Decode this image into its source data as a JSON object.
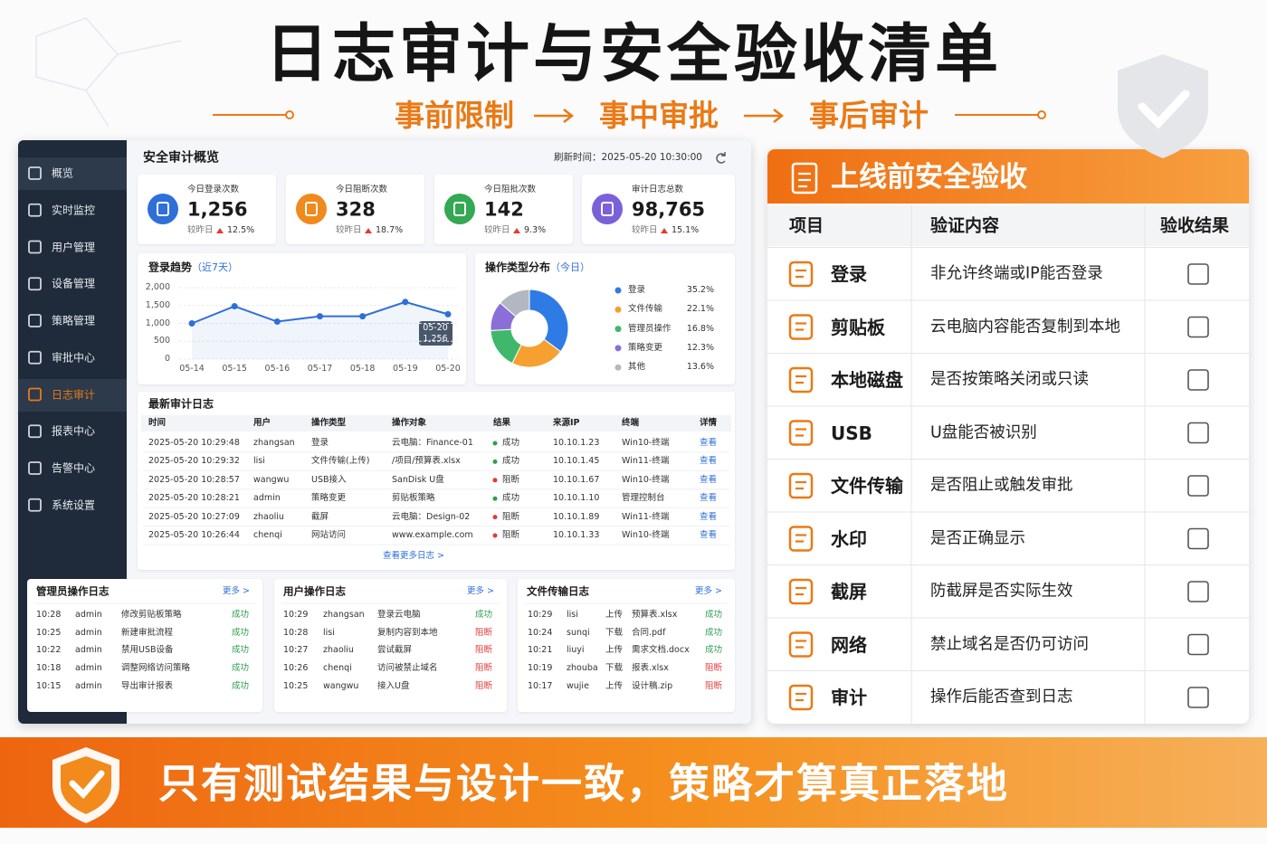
{
  "header": {
    "title": "日志审计与安全验收清单",
    "flow": [
      "事前限制",
      "事中审批",
      "事后审计"
    ]
  },
  "sidebar": {
    "items": [
      "概览",
      "实时监控",
      "用户管理",
      "设备管理",
      "策略管理",
      "审批中心",
      "日志审计",
      "报表中心",
      "告警中心",
      "系统设置"
    ],
    "active": 6
  },
  "dashboard": {
    "title": "安全审计概览",
    "refresh": "刷新时间：2025-05-20 10:30:00",
    "kpis": [
      {
        "label": "今日登录次数",
        "value": "1,256",
        "compare": "较昨日",
        "change": "12.5%",
        "color": "#2f6fd8"
      },
      {
        "label": "今日阻断次数",
        "value": "328",
        "compare": "较昨日",
        "change": "18.7%",
        "color": "#f08a1c"
      },
      {
        "label": "今日阻批次数",
        "value": "142",
        "compare": "较昨日",
        "change": "9.3%",
        "color": "#34a853"
      },
      {
        "label": "审计日志总数",
        "value": "98,765",
        "compare": "较昨日",
        "change": "15.1%",
        "color": "#7b61d9"
      }
    ],
    "logs": {
      "title": "最新审计日志",
      "headers": [
        "时间",
        "用户",
        "操作类型",
        "操作对象",
        "结果",
        "来源IP",
        "终端",
        "详情"
      ],
      "rows": [
        [
          "2025-05-20 10:29:48",
          "zhangsan",
          "登录",
          "云电脑：Finance-01",
          {
            "text": "成功",
            "color": "#2e9e4f"
          },
          "10.10.1.23",
          "Win10-终端",
          "查看"
        ],
        [
          "2025-05-20 10:29:32",
          "lisi",
          "文件传输(上传)",
          "/项目/预算表.xlsx",
          {
            "text": "成功",
            "color": "#2e9e4f"
          },
          "10.10.1.45",
          "Win11-终端",
          "查看"
        ],
        [
          "2025-05-20 10:28:57",
          "wangwu",
          "USB接入",
          "SanDisk U盘",
          {
            "text": "阻断",
            "color": "#e53935"
          },
          "10.10.1.67",
          "Win10-终端",
          "查看"
        ],
        [
          "2025-05-20 10:28:21",
          "admin",
          "策略变更",
          "剪贴板策略",
          {
            "text": "成功",
            "color": "#2e9e4f"
          },
          "10.10.1.10",
          "管理控制台",
          "查看"
        ],
        [
          "2025-05-20 10:27:09",
          "zhaoliu",
          "截屏",
          "云电脑：Design-02",
          {
            "text": "阻断",
            "color": "#e53935"
          },
          "10.10.1.89",
          "Win11-终端",
          "查看"
        ],
        [
          "2025-05-20 10:26:44",
          "chenqi",
          "网站访问",
          "www.example.com",
          {
            "text": "阻断",
            "color": "#e53935"
          },
          "10.10.1.33",
          "Win10-终端",
          "查看"
        ]
      ],
      "more": "查看更多日志 >"
    },
    "panels": [
      {
        "title": "管理员操作日志",
        "more": "更多 >",
        "rows": [
          [
            "10:28",
            "admin",
            "修改剪贴板策略",
            {
              "text": "成功",
              "color": "#2e9e4f"
            }
          ],
          [
            "10:25",
            "admin",
            "新建审批流程",
            {
              "text": "成功",
              "color": "#2e9e4f"
            }
          ],
          [
            "10:22",
            "admin",
            "禁用USB设备",
            {
              "text": "成功",
              "color": "#2e9e4f"
            }
          ],
          [
            "10:18",
            "admin",
            "调整网络访问策略",
            {
              "text": "成功",
              "color": "#2e9e4f"
            }
          ],
          [
            "10:15",
            "admin",
            "导出审计报表",
            {
              "text": "成功",
              "color": "#2e9e4f"
            }
          ]
        ]
      },
      {
        "title": "用户操作日志",
        "more": "更多 >",
        "rows": [
          [
            "10:29",
            "zhangsan",
            "登录云电脑",
            {
              "text": "成功",
              "color": "#2e9e4f"
            }
          ],
          [
            "10:28",
            "lisi",
            "复制内容到本地",
            {
              "text": "阻断",
              "color": "#e53935"
            }
          ],
          [
            "10:27",
            "zhaoliu",
            "尝试截屏",
            {
              "text": "阻断",
              "color": "#e53935"
            }
          ],
          [
            "10:26",
            "chenqi",
            "访问被禁止域名",
            {
              "text": "阻断",
              "color": "#e53935"
            }
          ],
          [
            "10:25",
            "wangwu",
            "接入U盘",
            {
              "text": "阻断",
              "color": "#e53935"
            }
          ]
        ]
      },
      {
        "title": "文件传输日志",
        "more": "更多 >",
        "rows": [
          [
            "10:29",
            "lisi",
            "上传",
            "预算表.xlsx",
            {
              "text": "成功",
              "color": "#2e9e4f"
            }
          ],
          [
            "10:24",
            "sunqi",
            "下载",
            "合同.pdf",
            {
              "text": "成功",
              "color": "#2e9e4f"
            }
          ],
          [
            "10:21",
            "liuyi",
            "上传",
            "需求文档.docx",
            {
              "text": "成功",
              "color": "#2e9e4f"
            }
          ],
          [
            "10:19",
            "zhouba",
            "下载",
            "报表.xlsx",
            {
              "text": "阻断",
              "color": "#e53935"
            }
          ],
          [
            "10:17",
            "wujie",
            "上传",
            "设计稿.zip",
            {
              "text": "阻断",
              "color": "#e53935"
            }
          ]
        ]
      }
    ]
  },
  "chart_data": [
    {
      "type": "line",
      "title": "登录趋势",
      "subtitle": "（近7天）",
      "categories": [
        "05-14",
        "05-15",
        "05-16",
        "05-17",
        "05-18",
        "05-19",
        "05-20"
      ],
      "values": [
        1000,
        1480,
        1050,
        1200,
        1200,
        1600,
        1256
      ],
      "color": "#2f6fd8",
      "ylim": [
        0,
        2000
      ],
      "yticks": [
        0,
        500,
        {
          "value": 1000,
          "label": "1,000"
        },
        {
          "value": 1500,
          "label": "1,500"
        },
        {
          "value": 2000,
          "label": "2,000"
        }
      ],
      "grid": true,
      "annotations": [
        {
          "title": "05-20",
          "label": "1,256"
        }
      ]
    },
    {
      "type": "pie",
      "title": "操作类型分布",
      "subtitle": "（今日）",
      "categories": [
        "登录",
        "文件传输",
        "管理员操作",
        "策略变更",
        "其他"
      ],
      "values": [
        35.2,
        22.1,
        16.8,
        12.3,
        13.6
      ],
      "value_labels": [
        "35.2%",
        "22.1%",
        "16.8%",
        "12.3%",
        "13.6%"
      ],
      "colors": [
        "#2f7be5",
        "#f5a030",
        "#3fb86b",
        "#8a6fd8",
        "#b3b8c0"
      ]
    }
  ],
  "checklist": {
    "title": "上线前安全验收",
    "headers": [
      "项目",
      "验证内容",
      "验收结果"
    ],
    "rows": [
      {
        "item": "登录",
        "content": "非允许终端或IP能否登录"
      },
      {
        "item": "剪贴板",
        "content": "云电脑内容能否复制到本地"
      },
      {
        "item": "本地磁盘",
        "content": "是否按策略关闭或只读"
      },
      {
        "item": "USB",
        "content": "U盘能否被识别"
      },
      {
        "item": "文件传输",
        "content": "是否阻止或触发审批"
      },
      {
        "item": "水印",
        "content": "是否正确显示"
      },
      {
        "item": "截屏",
        "content": "防截屏是否实际生效"
      },
      {
        "item": "网络",
        "content": "禁止域名是否仍可访问"
      },
      {
        "item": "审计",
        "content": "操作后能否查到日志"
      }
    ]
  },
  "footer": {
    "text": "只有测试结果与设计一致，策略才算真正落地"
  }
}
